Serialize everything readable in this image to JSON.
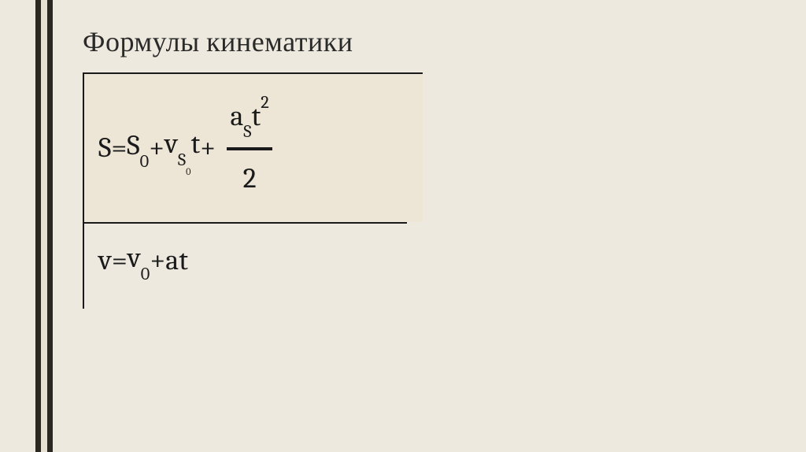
{
  "colors": {
    "background": "#ede9de",
    "sidebar_outer": "#2b2821",
    "sidebar_inner": "#e6e1d3",
    "formula_bg": "#ede6d6",
    "text": "#1a1a1a",
    "border": "#1a1a1a"
  },
  "title": "Формулы кинематики",
  "formula1": {
    "lhs": "S",
    "eq": " = ",
    "t1_base": "S",
    "t1_sub": "0",
    "plus1": " + ",
    "t2_base": "v",
    "t2_sub_base": "S",
    "t2_sub_sub": "0",
    "t2_tail": "t",
    "plus2": " + ",
    "frac_num_base": "a",
    "frac_num_sub": "S",
    "frac_num_t": "t",
    "frac_num_sup": "2",
    "frac_den": "2"
  },
  "formula2": {
    "lhs": "v",
    "eq": " = ",
    "t1_base": "v",
    "t1_sub": "0",
    "plus": " + ",
    "t2": "at"
  }
}
